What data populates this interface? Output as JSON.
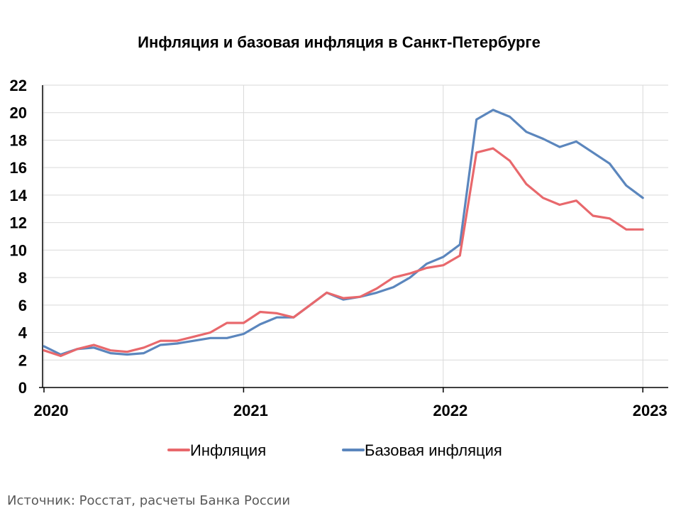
{
  "chart_data": {
    "type": "line",
    "title": "Инфляция и базовая инфляция в Санкт-Петербурге",
    "x_tick_labels": [
      "2020",
      "2021",
      "2022",
      "2023"
    ],
    "y_tick_labels": [
      "0",
      "2",
      "4",
      "6",
      "8",
      "10",
      "12",
      "14",
      "16",
      "18",
      "20",
      "22"
    ],
    "ylim": [
      0,
      22
    ],
    "grid": true,
    "legend_position": "bottom",
    "categories": [
      "2020-01",
      "2020-02",
      "2020-03",
      "2020-04",
      "2020-05",
      "2020-06",
      "2020-07",
      "2020-08",
      "2020-09",
      "2020-10",
      "2020-11",
      "2020-12",
      "2021-01",
      "2021-02",
      "2021-03",
      "2021-04",
      "2021-05",
      "2021-06",
      "2021-07",
      "2021-08",
      "2021-09",
      "2021-10",
      "2021-11",
      "2021-12",
      "2022-01",
      "2022-02",
      "2022-03",
      "2022-04",
      "2022-05",
      "2022-06",
      "2022-07",
      "2022-08",
      "2022-09",
      "2022-10",
      "2022-11",
      "2022-12",
      "2023-01"
    ],
    "series": [
      {
        "name": "Инфляция",
        "color": "#e8686c",
        "values": [
          2.7,
          2.3,
          2.8,
          3.1,
          2.7,
          2.6,
          2.9,
          3.4,
          3.4,
          3.7,
          4.0,
          4.7,
          4.7,
          5.5,
          5.4,
          5.1,
          6.0,
          6.9,
          6.5,
          6.6,
          7.2,
          8.0,
          8.3,
          8.7,
          8.9,
          9.6,
          17.1,
          17.4,
          16.5,
          14.8,
          13.8,
          13.3,
          13.6,
          12.5,
          12.3,
          11.5,
          11.5
        ]
      },
      {
        "name": "Базовая инфляция",
        "color": "#5b86bd",
        "values": [
          3.0,
          2.4,
          2.8,
          2.9,
          2.5,
          2.4,
          2.5,
          3.1,
          3.2,
          3.4,
          3.6,
          3.6,
          3.9,
          4.6,
          5.1,
          5.1,
          6.0,
          6.9,
          6.4,
          6.6,
          6.9,
          7.3,
          8.0,
          9.0,
          9.5,
          10.4,
          19.5,
          20.2,
          19.7,
          18.6,
          18.1,
          17.5,
          17.9,
          17.1,
          16.3,
          14.7,
          13.8
        ]
      }
    ]
  },
  "source": "Источник: Росстат, расчеты Банка России"
}
